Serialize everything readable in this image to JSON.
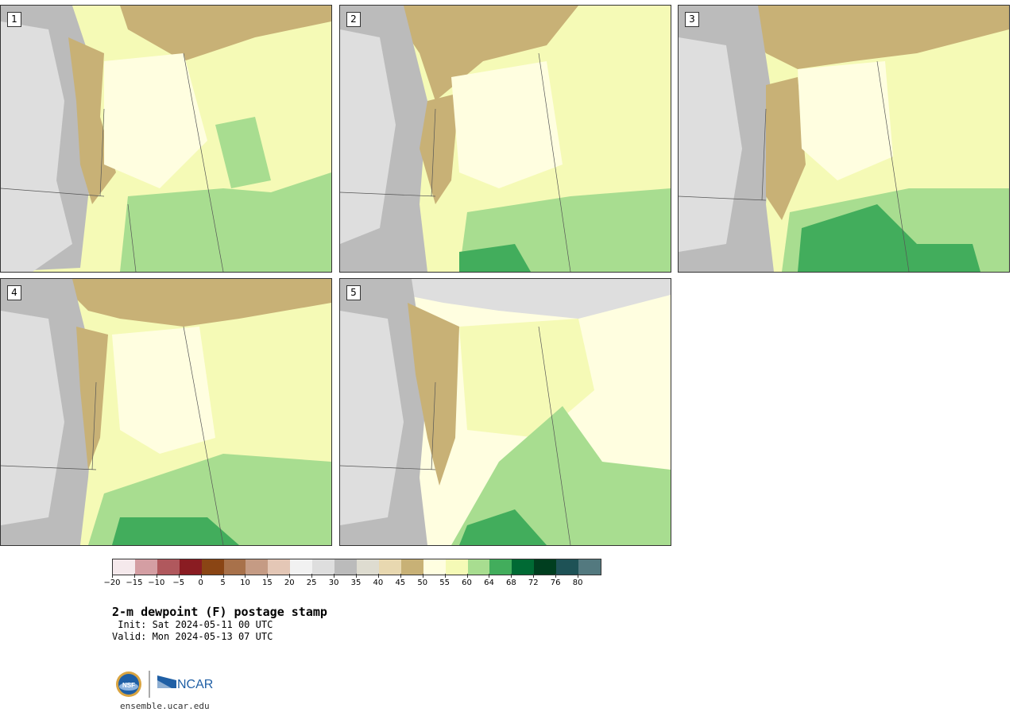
{
  "panels": [
    {
      "label": "1"
    },
    {
      "label": "2"
    },
    {
      "label": "3"
    },
    {
      "label": "4"
    },
    {
      "label": "5"
    }
  ],
  "colorbar": {
    "colors": [
      "#f5e9ec",
      "#d49ea3",
      "#b0585d",
      "#8a1c22",
      "#8a4514",
      "#a8714a",
      "#c59b84",
      "#e4c7b6",
      "#f1f1f1",
      "#dedede",
      "#bbbbbb",
      "#dedcd0",
      "#e8d8b0",
      "#c8b176",
      "#fffee0",
      "#f5fab6",
      "#a8dd90",
      "#42ad5c",
      "#006a34",
      "#003e1f",
      "#1e5256",
      "#53797f"
    ],
    "tick_labels": [
      "−20",
      "−15",
      "−10",
      "−5",
      "0",
      "5",
      "10",
      "15",
      "20",
      "25",
      "30",
      "35",
      "40",
      "45",
      "50",
      "55",
      "60",
      "64",
      "68",
      "72",
      "76",
      "80"
    ]
  },
  "title": "2-m dewpoint (F) postage stamp",
  "init": " Init: Sat 2024-05-11 00 UTC",
  "valid": "Valid: Mon 2024-05-13 07 UTC",
  "logos": {
    "nsf": "NSF",
    "ncar": "NCAR"
  },
  "site": "ensemble.ucar.edu"
}
